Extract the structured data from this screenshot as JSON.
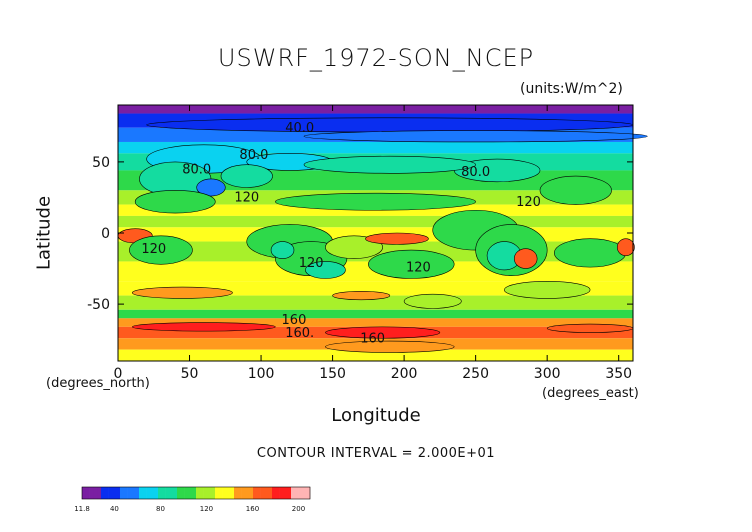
{
  "chart_data": {
    "type": "heatmap",
    "title": "USWRF_1972-SON_NCEP",
    "units": "(units:W/m^2)",
    "xlabel": "Longitude",
    "ylabel": "Latitude",
    "x_unit": "(degrees_east)",
    "y_unit": "(degrees_north)",
    "xlim": [
      0,
      360
    ],
    "ylim": [
      -90,
      90
    ],
    "x_ticks": [
      0,
      50,
      100,
      150,
      200,
      250,
      300,
      350
    ],
    "y_ticks": [
      50,
      0,
      -50
    ],
    "contour_interval": "CONTOUR INTERVAL = 2.000E+01",
    "contour_labels": [
      {
        "text": "40.0",
        "lon": 127,
        "lat": 71
      },
      {
        "text": "80.0",
        "lon": 95,
        "lat": 52
      },
      {
        "text": "80.0",
        "lon": 55,
        "lat": 42
      },
      {
        "text": "80.0",
        "lon": 250,
        "lat": 40
      },
      {
        "text": "120",
        "lon": 90,
        "lat": 22
      },
      {
        "text": "120",
        "lon": 287,
        "lat": 19
      },
      {
        "text": "120",
        "lon": 25,
        "lat": -14
      },
      {
        "text": "120",
        "lon": 135,
        "lat": -24
      },
      {
        "text": "120",
        "lon": 210,
        "lat": -27
      },
      {
        "text": "160",
        "lon": 123,
        "lat": -64
      },
      {
        "text": "160.",
        "lon": 127,
        "lat": -73
      },
      {
        "text": "160",
        "lon": 178,
        "lat": -77
      }
    ],
    "colorbar": {
      "min_label": "11.8",
      "tick_labels": [
        "40",
        "80",
        "120",
        "160",
        "200"
      ],
      "tick_values": [
        40,
        80,
        120,
        160,
        200
      ],
      "vmin": 11.8,
      "vmax": 210
    },
    "colors": {
      "violet": "#7a1fa2",
      "blue": "#0a2ef0",
      "mid_blue": "#1a78ff",
      "cyan": "#0ad2f0",
      "teal": "#14dca0",
      "green": "#2ed94a",
      "yellow_green": "#a8f02a",
      "yellow": "#ffff1e",
      "orange": "#ff9a1e",
      "red_orange": "#ff5a1e",
      "red": "#ff1e1e",
      "light_pink": "#ffb4b4"
    }
  }
}
